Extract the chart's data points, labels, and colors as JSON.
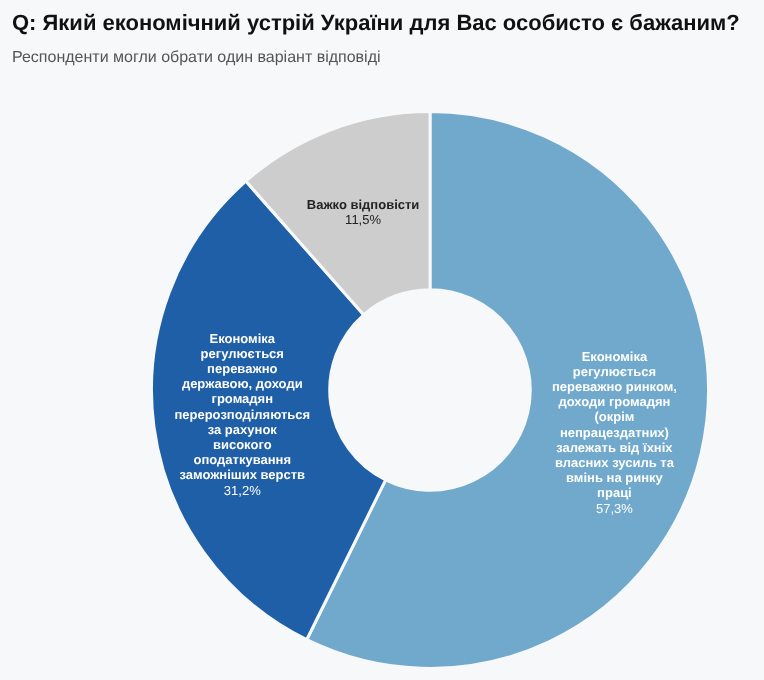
{
  "chart_data": {
    "type": "donut",
    "title": "Q: Який економічний устрій України для Вас особисто є бажаним?",
    "subtitle": "Респонденти могли обрати один варіант відповіді",
    "categories": [
      "Економіка регулюється переважно ринком, доходи громадян (окрім непрацездатних) залежать від їхніх власних зусиль та вмінь на ринку праці",
      "Економіка регулюється переважно державою, доходи громадян перерозподіляються за рахунок високого оподаткування заможніших верств",
      "Важко відповісти"
    ],
    "values": [
      57.3,
      31.2,
      11.5
    ],
    "colors": [
      "#70a9cc",
      "#1f5fa7",
      "#cdcdcd"
    ],
    "value_labels": [
      "57,3%",
      "31,2%",
      "11,5%"
    ]
  }
}
